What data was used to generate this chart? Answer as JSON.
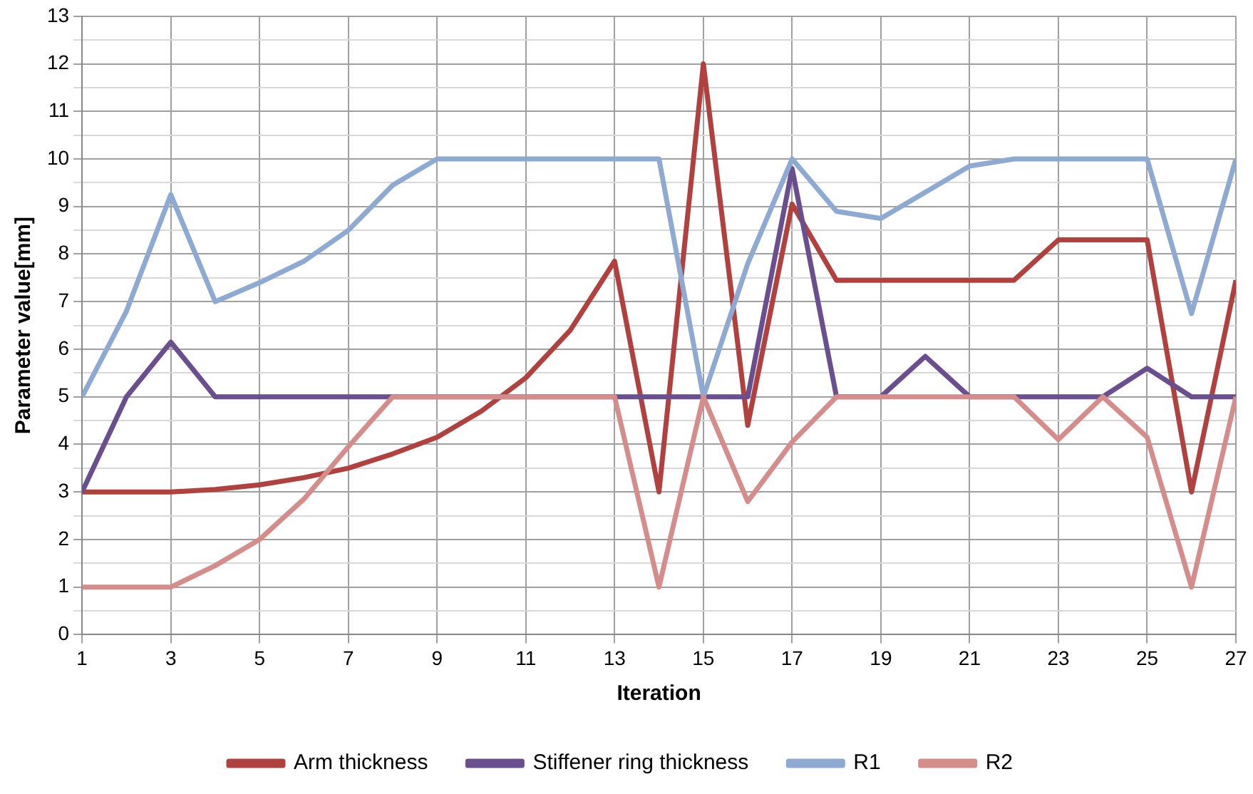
{
  "chart_data": {
    "type": "line",
    "xlabel": "Iteration",
    "ylabel": "Parameter value[mm]",
    "x": [
      1,
      2,
      3,
      4,
      5,
      6,
      7,
      8,
      9,
      10,
      11,
      12,
      13,
      14,
      15,
      16,
      17,
      18,
      19,
      20,
      21,
      22,
      23,
      24,
      25,
      26,
      27
    ],
    "xlim": [
      1,
      27
    ],
    "xticks": [
      1,
      3,
      5,
      7,
      9,
      11,
      13,
      15,
      17,
      19,
      21,
      23,
      25,
      27
    ],
    "ylim": [
      0,
      13
    ],
    "yticks": [
      0,
      {
        "value": 0.5,
        "label": null
      },
      1,
      {
        "value": 1.5,
        "label": null
      },
      2,
      {
        "value": 2.5,
        "label": null
      },
      3,
      {
        "value": 3.5,
        "label": null
      },
      4,
      {
        "value": 4.5,
        "label": null
      },
      5,
      {
        "value": 5.5,
        "label": null
      },
      6,
      {
        "value": 6.5,
        "label": null
      },
      7,
      {
        "value": 7.5,
        "label": null
      },
      8,
      {
        "value": 8.5,
        "label": null
      },
      9,
      {
        "value": 9.5,
        "label": null
      },
      10,
      {
        "value": 10.5,
        "label": null
      },
      11,
      {
        "value": 11.5,
        "label": null
      },
      12,
      {
        "value": 12.5,
        "label": null
      },
      13
    ],
    "grid": true,
    "legend": "bottom",
    "marker": "none",
    "line_style": "solid",
    "series": [
      {
        "name": "Arm thickness",
        "color": "#b0413e",
        "values": [
          3,
          3,
          3,
          3.05,
          3.15,
          3.3,
          3.5,
          3.8,
          4.15,
          4.7,
          5.4,
          6.4,
          7.85,
          3,
          12,
          4.4,
          9.05,
          7.45,
          7.45,
          7.45,
          7.45,
          7.45,
          8.3,
          8.3,
          8.3,
          3,
          7.45
        ]
      },
      {
        "name": "Stiffener ring thickness",
        "color": "#6a4f8f",
        "values": [
          3,
          5,
          6.15,
          5,
          5,
          5,
          5,
          5,
          5,
          5,
          5,
          5,
          5,
          5,
          5,
          5,
          9.8,
          5,
          5,
          5.85,
          5,
          5,
          5,
          5,
          5.6,
          5,
          5
        ]
      },
      {
        "name": "R1",
        "color": "#8eaad3",
        "values": [
          5,
          6.8,
          9.25,
          7,
          7.4,
          7.85,
          8.5,
          9.45,
          10,
          10,
          10,
          10,
          10,
          10,
          5,
          7.8,
          10,
          8.9,
          8.75,
          9.3,
          9.85,
          10,
          10,
          10,
          10,
          6.75,
          10
        ]
      },
      {
        "name": "R2",
        "color": "#d48d8b",
        "values": [
          1,
          1,
          1,
          1.45,
          2,
          2.85,
          3.95,
          5,
          5,
          5,
          5,
          5,
          5,
          1,
          5,
          2.8,
          4.05,
          5,
          5,
          5,
          5,
          5,
          4.1,
          5,
          4.15,
          1,
          5
        ]
      }
    ]
  }
}
